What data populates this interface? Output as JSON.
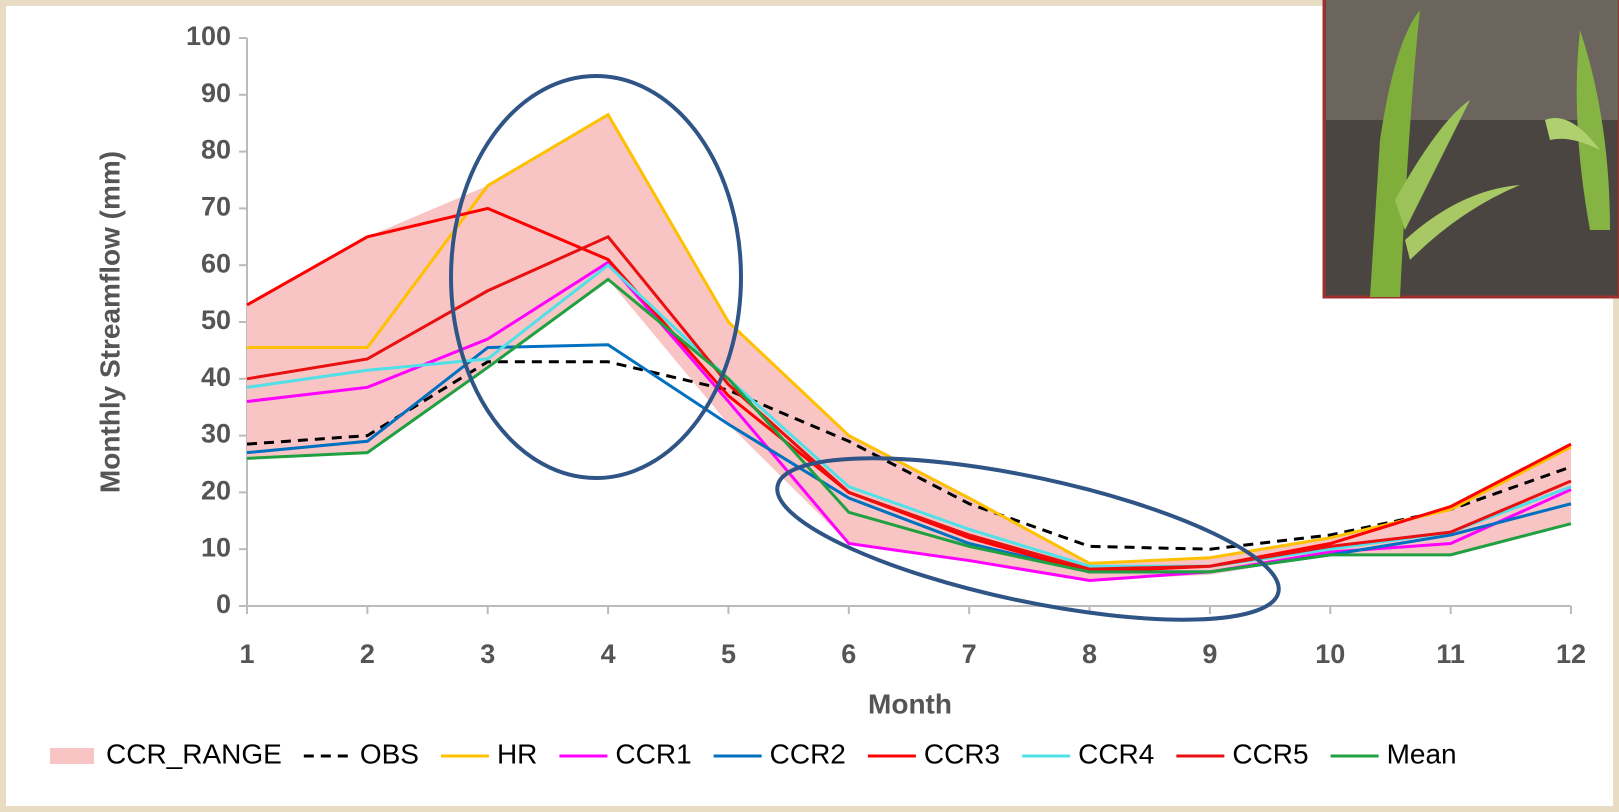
{
  "chart_data": {
    "type": "line",
    "x_label": "Month",
    "y_label": "Monthly Streamflow (mm)",
    "x": [
      1,
      2,
      3,
      4,
      5,
      6,
      7,
      8,
      9,
      10,
      11,
      12
    ],
    "xlim": [
      1,
      12
    ],
    "xticks": [
      1,
      2,
      3,
      4,
      5,
      6,
      7,
      8,
      9,
      10,
      11,
      12
    ],
    "ylim": [
      0,
      100
    ],
    "yticks": [
      0,
      10,
      20,
      30,
      40,
      50,
      60,
      70,
      80,
      90,
      100
    ],
    "band": {
      "name": "CCR_RANGE",
      "color": "#f9c4c4",
      "high": [
        53,
        65,
        74,
        86.5,
        50,
        30,
        19,
        7.5,
        8.5,
        12,
        17.5,
        28.5
      ],
      "low": [
        26,
        27,
        42,
        57.5,
        32,
        11,
        8,
        4.5,
        5.5,
        9,
        9,
        14.5
      ]
    },
    "series": [
      {
        "name": "OBS",
        "color": "#000000",
        "dashed": true,
        "values": [
          28.5,
          30,
          43,
          43,
          38,
          29,
          18,
          10.5,
          10,
          12.5,
          17,
          24.5
        ]
      },
      {
        "name": "HR",
        "color": "#ffc000",
        "values": [
          45.5,
          45.5,
          74,
          86.5,
          50,
          30,
          19,
          7.5,
          8.5,
          12,
          17,
          28
        ]
      },
      {
        "name": "CCR1",
        "color": "#ff00ff",
        "values": [
          36,
          38.5,
          47,
          60.5,
          36,
          11,
          8,
          4.5,
          6,
          9.5,
          11,
          20.5
        ]
      },
      {
        "name": "CCR2",
        "color": "#0070c0",
        "values": [
          27,
          29,
          45.5,
          46,
          32,
          19,
          11,
          6,
          6,
          9,
          12.5,
          18
        ]
      },
      {
        "name": "CCR3",
        "color": "#ff0000",
        "values": [
          53,
          65,
          70,
          61,
          37,
          20,
          12,
          6,
          7,
          11,
          17.5,
          28.5
        ]
      },
      {
        "name": "CCR4",
        "color": "#4fe0e8",
        "values": [
          38.5,
          41.5,
          43.5,
          60,
          40,
          21,
          13.5,
          7,
          7,
          10,
          13,
          21
        ]
      },
      {
        "name": "CCR5",
        "color": "#e81010",
        "values": [
          40,
          43.5,
          55.5,
          65,
          39,
          20,
          12.5,
          6.5,
          7,
          10.5,
          13,
          22
        ]
      },
      {
        "name": "Mean",
        "color": "#20a040",
        "values": [
          26,
          27,
          42,
          57.5,
          40,
          16.5,
          10.5,
          6,
          6,
          9,
          9,
          14.5
        ]
      }
    ]
  }
}
